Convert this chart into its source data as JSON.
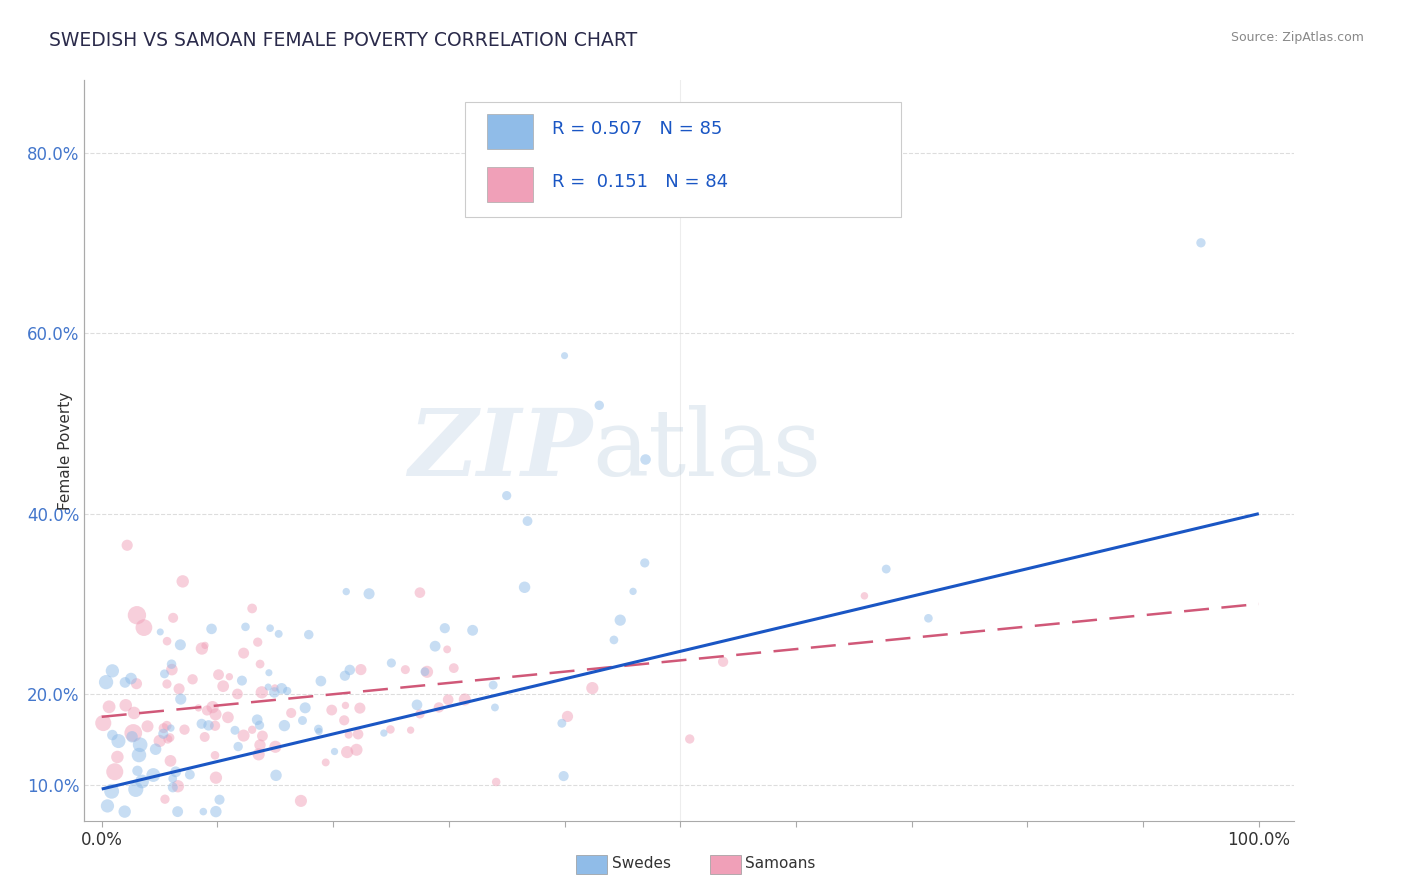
{
  "title": "SWEDISH VS SAMOAN FEMALE POVERTY CORRELATION CHART",
  "source": "Source: ZipAtlas.com",
  "ylabel": "Female Poverty",
  "r_swedes": 0.507,
  "n_swedes": 85,
  "r_samoans": 0.151,
  "n_samoans": 84,
  "blue_color": "#90bce8",
  "pink_color": "#f0a0b8",
  "blue_line_color": "#1a56c4",
  "pink_line_color": "#d05878",
  "watermark_zip": "ZIP",
  "watermark_atlas": "atlas",
  "legend_swedes": "Swedes",
  "legend_samoans": "Samoans",
  "ytick_vals": [
    0.1,
    0.2,
    0.4,
    0.6,
    0.8
  ],
  "ytick_labels": [
    "10.0%",
    "20.0%",
    "40.0%",
    "60.0%",
    "80.0%"
  ],
  "xlim": [
    -0.015,
    1.03
  ],
  "ylim": [
    0.06,
    0.88
  ],
  "title_color": "#2a2a4a",
  "source_color": "#888888",
  "axis_tick_color": "#4477cc",
  "grid_color": "#dddddd",
  "point_size": 40
}
